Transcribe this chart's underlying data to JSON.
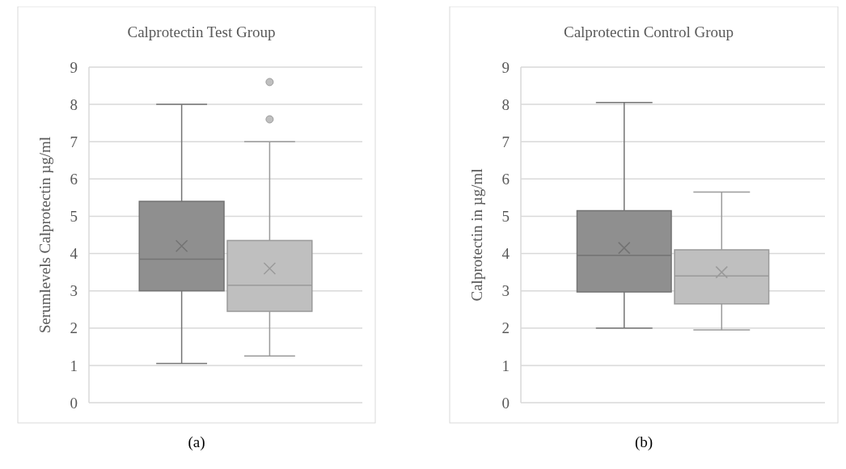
{
  "chart_data": [
    {
      "type": "box",
      "title": "Calprotectin Test Group",
      "ylabel": "Serumlevels Calprotectin µg/ml",
      "categories": [
        null
      ],
      "ylim": [
        0,
        9
      ],
      "yticks": [
        0,
        1,
        2,
        3,
        4,
        5,
        6,
        7,
        8,
        9
      ],
      "grid": "y",
      "annotations": [
        "(a)"
      ],
      "series": [
        {
          "color": "#8f8f8f",
          "boxes": [
            {
              "low": 1.05,
              "q1": 3.0,
              "median": 3.85,
              "q3": 5.4,
              "high": 8.0,
              "mean": 4.2
            }
          ]
        },
        {
          "color": "#bfbfbf",
          "boxes": [
            {
              "low": 1.25,
              "q1": 2.45,
              "median": 3.15,
              "q3": 4.35,
              "high": 7.0,
              "mean": 3.6,
              "outliers": [
                7.6,
                8.6
              ]
            }
          ]
        }
      ]
    },
    {
      "type": "box",
      "title": "Calprotectin Control Group",
      "ylabel": "Calprotectin in µg/ml",
      "categories": [
        null
      ],
      "ylim": [
        0,
        9
      ],
      "yticks": [
        0,
        1,
        2,
        3,
        4,
        5,
        6,
        7,
        8,
        9
      ],
      "grid": "y",
      "annotations": [
        "(b)"
      ],
      "series": [
        {
          "color": "#8f8f8f",
          "boxes": [
            {
              "low": 2.0,
              "q1": 2.97,
              "median": 3.95,
              "q3": 5.15,
              "high": 8.05,
              "mean": 4.15
            }
          ]
        },
        {
          "color": "#bfbfbf",
          "boxes": [
            {
              "low": 1.95,
              "q1": 2.65,
              "median": 3.4,
              "q3": 4.1,
              "high": 5.65,
              "mean": 3.5
            }
          ]
        }
      ]
    }
  ]
}
